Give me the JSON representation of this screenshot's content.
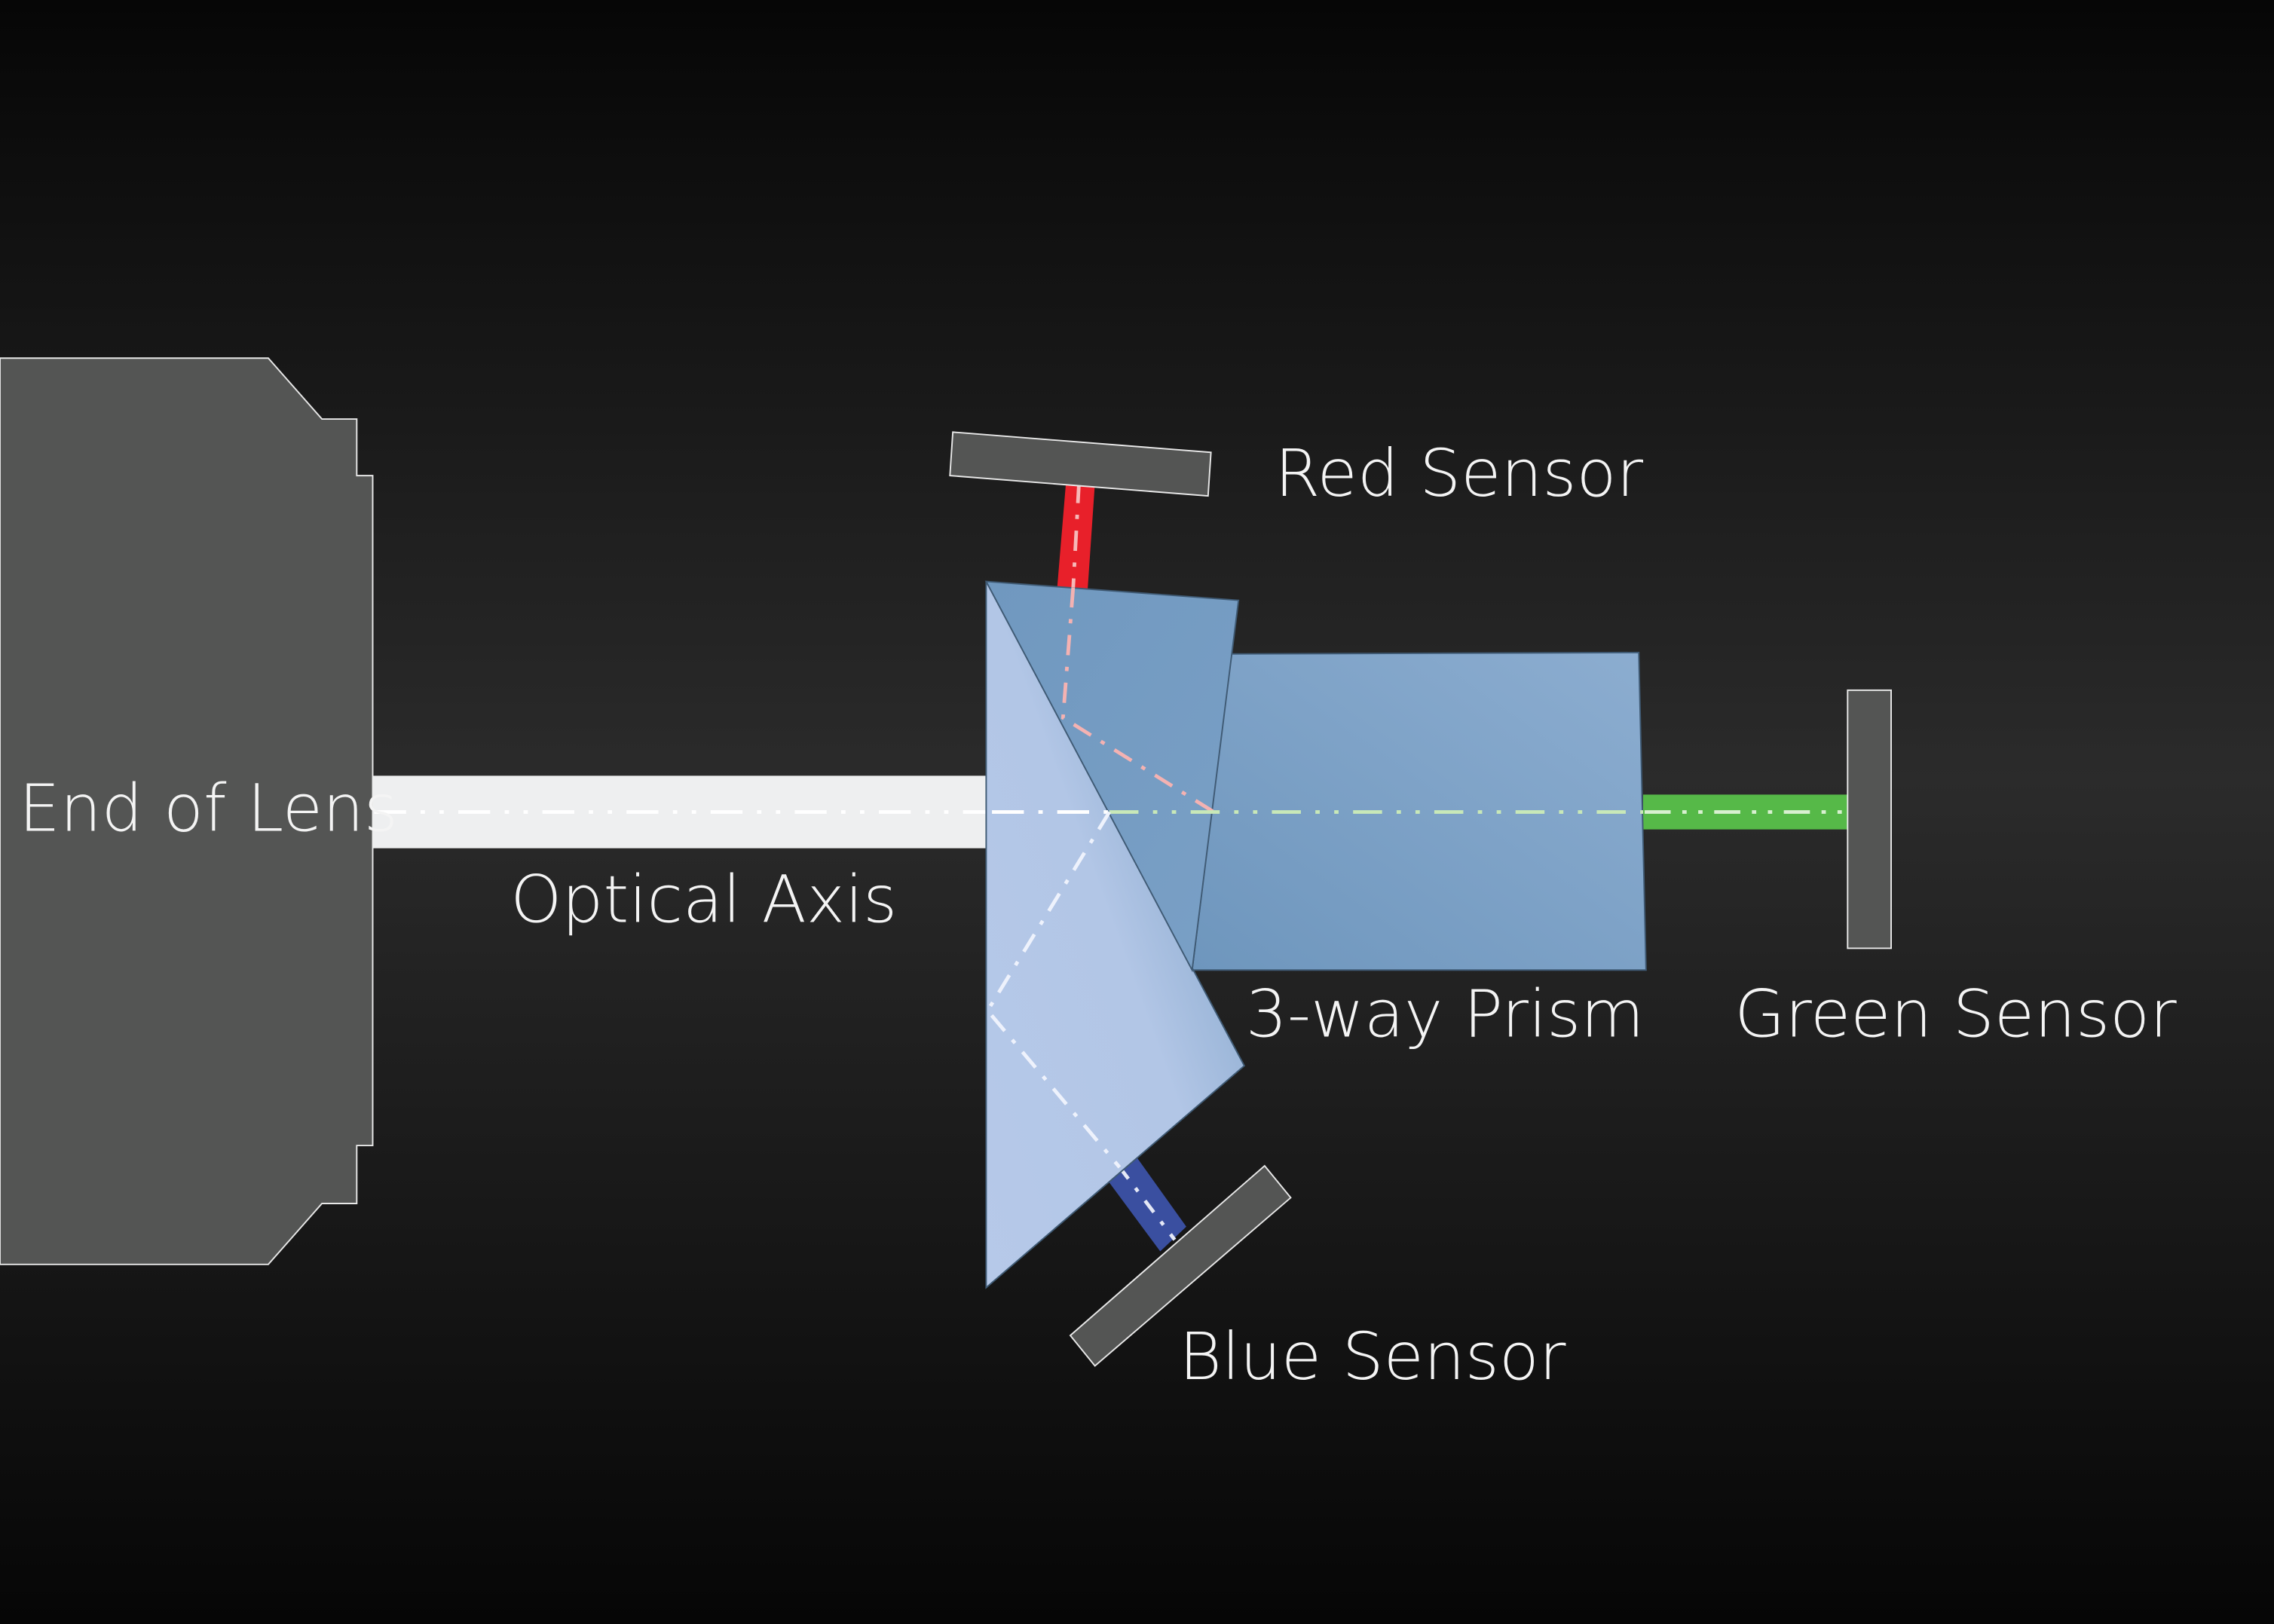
{
  "labels": {
    "lens": "End of Lens",
    "optical_axis": "Optical Axis",
    "red_sensor": "Red Sensor",
    "prism": "3-way Prism",
    "green_sensor": "Green Sensor",
    "blue_sensor": "Blue Sensor"
  },
  "colors": {
    "background_top": "#060606",
    "background_mid": "#2a2a2a",
    "background_bottom": "#060606",
    "lens_fill": "#545554",
    "sensor_fill": "#545554",
    "axis_beam": "#eeeff0",
    "red_beam": "#e8202a",
    "green_beam": "#56b948",
    "blue_beam": "#3a4fa0",
    "prism_light": "#b4c8e8",
    "prism_mid": "#86a8cc",
    "prism_dark": "#6f97bd"
  }
}
